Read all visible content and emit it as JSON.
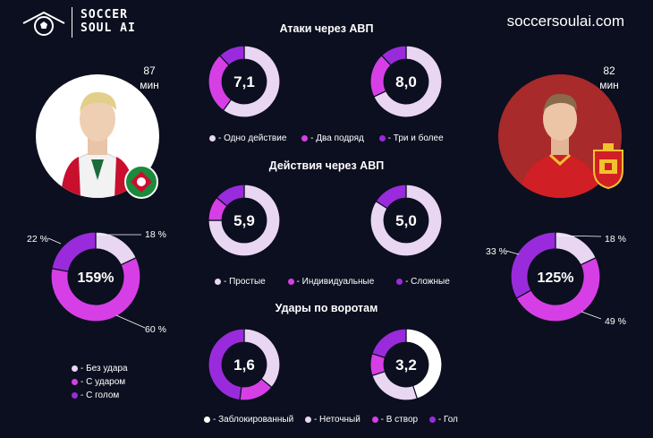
{
  "brand": {
    "line1": "SOCCER",
    "line2": "SOUL AI",
    "site": "soccersoulai.com"
  },
  "colors": {
    "light": "#e8d6f2",
    "mid": "#d63fe6",
    "dark": "#9a2bdc",
    "bg": "#0c0f1f"
  },
  "players": {
    "left": {
      "minutes": "87",
      "unit": "мин"
    },
    "right": {
      "minutes": "82",
      "unit": "мин"
    }
  },
  "sections": {
    "attacks": {
      "title": "Атаки через АВП",
      "legend": [
        "- Одно действие",
        "- Два подряд",
        "- Три и более"
      ]
    },
    "actions": {
      "title": "Действия через АВП",
      "legend": [
        "- Простые",
        "- Индивидуальные",
        "- Сложные"
      ]
    },
    "shots": {
      "title": "Удары по воротам",
      "legend": [
        "- Заблокированный",
        "- Неточный",
        "- В створ",
        "- Гол"
      ]
    },
    "efficiency": {
      "legend": [
        "- Без удара",
        "- С ударом",
        "- С голом"
      ]
    }
  },
  "chart_data": [
    {
      "type": "pie",
      "id": "attacks-left",
      "center_label": "7,1",
      "categories": [
        "Одно действие",
        "Два подряд",
        "Три и более"
      ],
      "values": [
        60,
        28,
        12
      ]
    },
    {
      "type": "pie",
      "id": "attacks-right",
      "center_label": "8,0",
      "categories": [
        "Одно действие",
        "Два подряд",
        "Три и более"
      ],
      "values": [
        68,
        20,
        12
      ]
    },
    {
      "type": "pie",
      "id": "actions-left",
      "center_label": "5,9",
      "categories": [
        "Простые",
        "Индивидуальные",
        "Сложные"
      ],
      "values": [
        75,
        11,
        14
      ]
    },
    {
      "type": "pie",
      "id": "actions-right",
      "center_label": "5,0",
      "categories": [
        "Простые",
        "Индивидуальные",
        "Сложные"
      ],
      "values": [
        84,
        0,
        16
      ]
    },
    {
      "type": "pie",
      "id": "shots-left",
      "center_label": "1,6",
      "categories": [
        "Заблокированный",
        "Неточный",
        "В створ",
        "Гол"
      ],
      "values": [
        0,
        36,
        16,
        48
      ]
    },
    {
      "type": "pie",
      "id": "shots-right",
      "center_label": "3,2",
      "categories": [
        "Заблокированный",
        "Неточный",
        "В створ",
        "Гол"
      ],
      "values": [
        45,
        25,
        10,
        20
      ]
    },
    {
      "type": "pie",
      "id": "efficiency-left",
      "center_label": "159%",
      "categories": [
        "Без удара",
        "С ударом",
        "С голом"
      ],
      "values": [
        18,
        60,
        22
      ],
      "labels": [
        "18 %",
        "60 %",
        "22 %"
      ]
    },
    {
      "type": "pie",
      "id": "efficiency-right",
      "center_label": "125%",
      "categories": [
        "Без удара",
        "С ударом",
        "С голом"
      ],
      "values": [
        18,
        49,
        33
      ],
      "labels": [
        "18 %",
        "49 %",
        "33 %"
      ]
    }
  ]
}
